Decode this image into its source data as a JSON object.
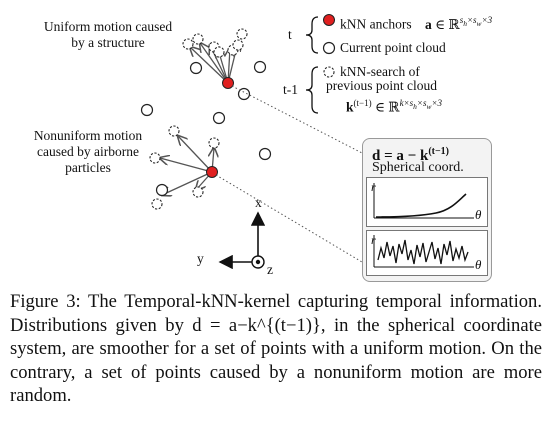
{
  "labels": {
    "uniform": "Uniform motion caused by a structure",
    "nonuniform": "Nonuniform motion caused by airborne particles",
    "t": "t",
    "t1": "t-1",
    "anchors": "kNN anchors",
    "anchors_math": "a ∈ ℝ^{s_h×s_w×3}",
    "current": "Current point cloud",
    "knn_search_1": "kNN-search of",
    "knn_search_2": "previous point cloud",
    "k_math": "k^{(t−1)} ∈ ℝ^{k×s_h×s_w×3}",
    "formula": "d = a − k^{(t−1)}",
    "spherical": "Spherical coord.",
    "r": "r",
    "theta": "θ",
    "x": "x",
    "y": "y",
    "z": "z"
  },
  "caption": "Figure 3: The Temporal-kNN-kernel capturing temporal information. Distributions given by d = a−k^{(t−1)}, in the spherical coordinate system, are smoother for a set of points with a uniform motion. On the contrary, a set of points caused by a nonuniform motion are more random.",
  "colors": {
    "anchor": "#e02020",
    "arrow": "#555555",
    "panel": "#f3f3f3"
  }
}
